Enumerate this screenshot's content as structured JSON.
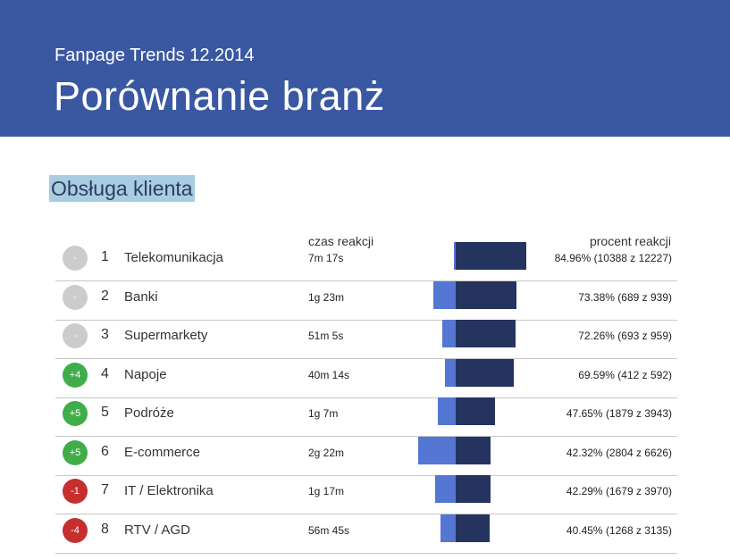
{
  "header": {
    "subtitle": "Fanpage Trends 12.2014",
    "title": "Porównanie branż",
    "bg_color": "#3a58a2"
  },
  "section": {
    "title": "Obsługa klienta",
    "highlight_color": "#a8cde0"
  },
  "columns": {
    "time": "czas reakcji",
    "pct": "procent reakcji"
  },
  "colors": {
    "time_bar": "#5477d4",
    "pct_bar": "#24345f",
    "badge_neutral": "#cccccc",
    "badge_up": "#3fae49",
    "badge_down": "#c72e2e"
  },
  "chart_data": {
    "type": "bar",
    "title": "Obsługa klienta",
    "series": [
      {
        "name": "czas reakcji (minuty)",
        "values": [
          7.3,
          83,
          51.1,
          40.2,
          67,
          142,
          77,
          56.8
        ]
      },
      {
        "name": "procent reakcji",
        "values": [
          84.96,
          73.38,
          72.26,
          69.59,
          47.65,
          42.32,
          42.29,
          40.45
        ]
      }
    ],
    "categories": [
      "Telekomunikacja",
      "Banki",
      "Supermarkety",
      "Napoje",
      "Podróże",
      "E-commerce",
      "IT / Elektronika",
      "RTV / AGD"
    ],
    "rows": [
      {
        "change": "-",
        "change_dir": "neutral",
        "rank": "1",
        "name": "Telekomunikacja",
        "time": "7m 17s",
        "time_min": 7.3,
        "pct_label": "84.96% (10388 z 12227)",
        "pct": 84.96
      },
      {
        "change": "-",
        "change_dir": "neutral",
        "rank": "2",
        "name": "Banki",
        "time": "1g 23m",
        "time_min": 83,
        "pct_label": "73.38% (689 z 939)",
        "pct": 73.38
      },
      {
        "change": "-",
        "change_dir": "neutral",
        "rank": "3",
        "name": "Supermarkety",
        "time": "51m 5s",
        "time_min": 51.1,
        "pct_label": "72.26% (693 z 959)",
        "pct": 72.26
      },
      {
        "change": "+4",
        "change_dir": "up",
        "rank": "4",
        "name": "Napoje",
        "time": "40m 14s",
        "time_min": 40.2,
        "pct_label": "69.59% (412 z 592)",
        "pct": 69.59
      },
      {
        "change": "+5",
        "change_dir": "up",
        "rank": "5",
        "name": "Podróże",
        "time": "1g 7m",
        "time_min": 67,
        "pct_label": "47.65% (1879 z 3943)",
        "pct": 47.65
      },
      {
        "change": "+5",
        "change_dir": "up",
        "rank": "6",
        "name": "E-commerce",
        "time": "2g 22m",
        "time_min": 142,
        "pct_label": "42.32% (2804 z 6626)",
        "pct": 42.32
      },
      {
        "change": "-1",
        "change_dir": "down",
        "rank": "7",
        "name": "IT / Elektronika",
        "time": "1g 17m",
        "time_min": 77,
        "pct_label": "42.29% (1679 z 3970)",
        "pct": 42.29
      },
      {
        "change": "-4",
        "change_dir": "down",
        "rank": "8",
        "name": "RTV / AGD",
        "time": "56m 45s",
        "time_min": 56.8,
        "pct_label": "40.45% (1268 z 3135)",
        "pct": 40.45
      }
    ]
  }
}
